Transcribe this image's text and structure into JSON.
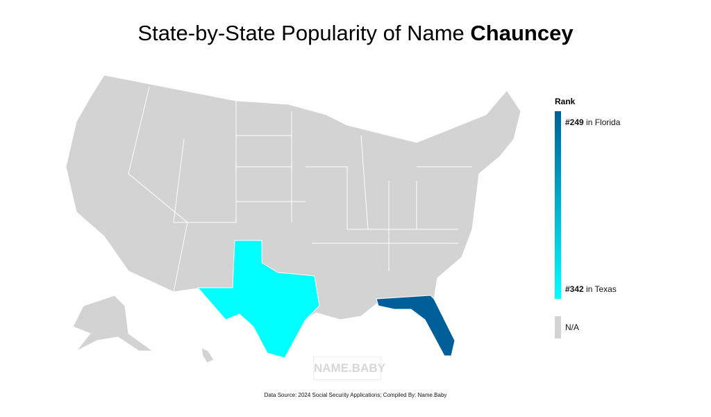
{
  "title": {
    "prefix": "State-by-State Popularity of Name ",
    "name": "Chauncey"
  },
  "legend": {
    "title": "Rank",
    "top": {
      "rank": "#249",
      "text": " in Florida"
    },
    "bottom": {
      "rank": "#342",
      "text": " in Texas"
    },
    "na_label": "N/A",
    "color_high": "#005f99",
    "color_low": "#00ffff",
    "color_na": "#d3d3d3"
  },
  "states": [
    {
      "name": "Texas",
      "rank": 342,
      "color": "#00ffff"
    },
    {
      "name": "Florida",
      "rank": 249,
      "color": "#005f99"
    }
  ],
  "watermark": "NAME.BABY",
  "footer": "Data Source: 2024 Social Security Applications; Compiled By: Name.Baby"
}
